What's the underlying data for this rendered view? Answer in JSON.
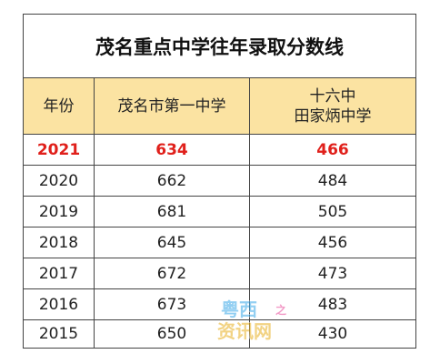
{
  "title": "茂名重点中学往年录取分数线",
  "headers": {
    "year": "年份",
    "school_a": "茂名市第一中学",
    "school_b_line1": "十六中",
    "school_b_line2": "田家炳中学"
  },
  "rows": [
    {
      "year": "2021",
      "a": "634",
      "b": "466"
    },
    {
      "year": "2020",
      "a": "662",
      "b": "484"
    },
    {
      "year": "2019",
      "a": "681",
      "b": "505"
    },
    {
      "year": "2018",
      "a": "645",
      "b": "456"
    },
    {
      "year": "2017",
      "a": "672",
      "b": "473"
    },
    {
      "year": "2016",
      "a": "673",
      "b": "483"
    },
    {
      "year": "2015",
      "a": "650",
      "b": "430"
    }
  ],
  "highlight_color": "#e0201b",
  "header_bg": "#fbe3a2",
  "watermark": {
    "line1": "粤西",
    "line2": "资讯网",
    "mark": "之"
  }
}
